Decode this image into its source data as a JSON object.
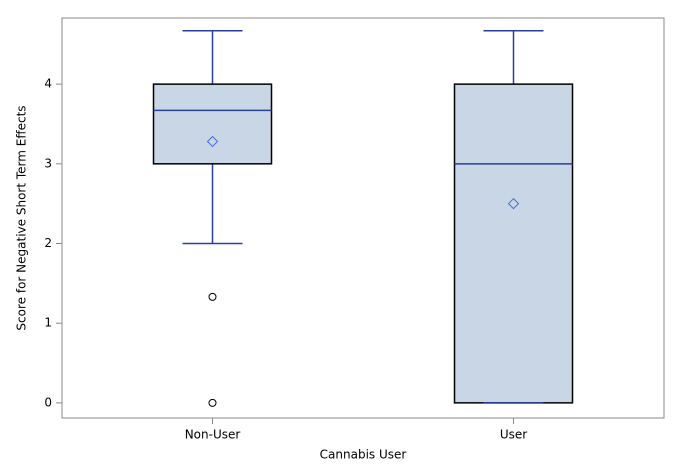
{
  "chart_data": {
    "type": "box",
    "x_label": "Cannabis User",
    "y_label": "Score for Negative Short Term Effects",
    "categories": [
      "Non-User",
      "User"
    ],
    "min": [
      2,
      0
    ],
    "q1": [
      3,
      0
    ],
    "median": [
      3.67,
      3
    ],
    "q3": [
      4,
      4
    ],
    "max": [
      4.67,
      4.67
    ],
    "mean": [
      3.28,
      2.5
    ],
    "outliers": [
      [
        1.33,
        0
      ],
      []
    ],
    "box_color": "#c9d6e5",
    "line_color": "#2a3e9e",
    "ylim": [
      -0.19,
      4.83
    ],
    "yticks": [
      0,
      1,
      2,
      3,
      4
    ]
  }
}
